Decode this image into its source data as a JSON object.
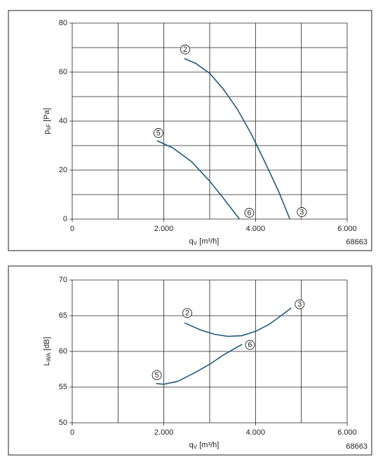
{
  "chart_data": [
    {
      "type": "line",
      "y_label": {
        "main": "p",
        "sub": "sF",
        "unit": " [Pa]"
      },
      "x_label": {
        "main": "q",
        "sub": "V",
        "unit": " [m³/h]"
      },
      "code": "68663",
      "xlim": [
        0,
        6000
      ],
      "ylim": [
        0,
        80
      ],
      "xticks": [
        0,
        {
          "value": 2000,
          "label": "2.000"
        },
        {
          "value": 4000,
          "label": "4.000"
        },
        {
          "value": 6000,
          "label": "6.000"
        }
      ],
      "yticks": [
        0,
        20,
        40,
        60,
        80
      ],
      "x_minor_grid": [
        1000,
        3000,
        5000
      ],
      "y_minor_grid": [
        10,
        30,
        50,
        70
      ],
      "grid": true,
      "series": [
        {
          "start_label": "2",
          "end_label": "3",
          "color": "#1d5a7c",
          "x": [
            2450,
            2700,
            3000,
            3300,
            3600,
            3900,
            4200,
            4500,
            4750
          ],
          "values": [
            65.5,
            63.5,
            59.5,
            53,
            45,
            35,
            23.5,
            11.5,
            0
          ]
        },
        {
          "start_label": "5",
          "end_label": "6",
          "color": "#1d5a7c",
          "x": [
            1850,
            2200,
            2600,
            3000,
            3300,
            3650
          ],
          "values": [
            32,
            29,
            23.5,
            15.5,
            8.5,
            0
          ]
        }
      ]
    },
    {
      "type": "line",
      "y_label": {
        "main": "L",
        "sub": "WA",
        "unit": " [dB]"
      },
      "x_label": {
        "main": "q",
        "sub": "V",
        "unit": " [m³/h]"
      },
      "code": "68663",
      "xlim": [
        0,
        6000
      ],
      "ylim": [
        50,
        70
      ],
      "xticks": [
        0,
        {
          "value": 2000,
          "label": "2.000"
        },
        {
          "value": 4000,
          "label": "4.000"
        },
        {
          "value": 6000,
          "label": "6.000"
        }
      ],
      "yticks": [
        50,
        55,
        60,
        65,
        70
      ],
      "x_minor_grid": [
        1000,
        3000,
        5000
      ],
      "y_minor_grid": [],
      "grid": true,
      "series": [
        {
          "start_label": "2",
          "end_label": "3",
          "color": "#1d5a7c",
          "x": [
            2450,
            2800,
            3100,
            3400,
            3700,
            4000,
            4300,
            4600,
            4780
          ],
          "values": [
            64,
            63,
            62.4,
            62.1,
            62.2,
            62.8,
            63.8,
            65.2,
            66.1
          ]
        },
        {
          "start_label": "5",
          "end_label": "6",
          "color": "#1d5a7c",
          "x": [
            1830,
            2000,
            2300,
            2700,
            3000,
            3300,
            3710
          ],
          "values": [
            55.5,
            55.4,
            55.8,
            57.1,
            58.2,
            59.5,
            61
          ]
        }
      ]
    }
  ]
}
